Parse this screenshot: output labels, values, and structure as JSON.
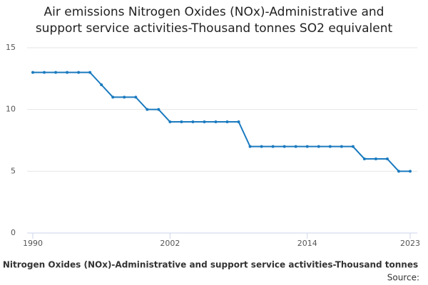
{
  "chart_data": {
    "type": "line",
    "title": "Air emissions Nitrogen Oxides (NOx)-Administrative and support service activities-Thousand tonnes SO2 equivalent",
    "x_label": "Nitrogen Oxides (NOx)-Administrative and support service activities-Thousand tonnes",
    "source": "Source:",
    "x": [
      1990,
      1991,
      1992,
      1993,
      1994,
      1995,
      1996,
      1997,
      1998,
      1999,
      2000,
      2001,
      2002,
      2003,
      2004,
      2005,
      2006,
      2007,
      2008,
      2009,
      2010,
      2011,
      2012,
      2013,
      2014,
      2015,
      2016,
      2017,
      2018,
      2019,
      2020,
      2021,
      2022,
      2023
    ],
    "series": [
      {
        "name": "Nitrogen Oxides (NOx)",
        "color": "#1a7abf",
        "values": [
          13,
          13,
          13,
          13,
          13,
          13,
          12,
          11,
          11,
          11,
          10,
          10,
          9,
          9,
          9,
          9,
          9,
          9,
          9,
          7,
          7,
          7,
          7,
          7,
          7,
          7,
          7,
          7,
          7,
          6,
          6,
          6,
          5,
          5
        ]
      }
    ],
    "xlim": [
      1990,
      2023
    ],
    "xticks": [
      1990,
      2002,
      2014,
      2023
    ],
    "ylim": [
      0,
      15
    ],
    "yticks": [
      0,
      5,
      10,
      15
    ],
    "grid": true
  }
}
